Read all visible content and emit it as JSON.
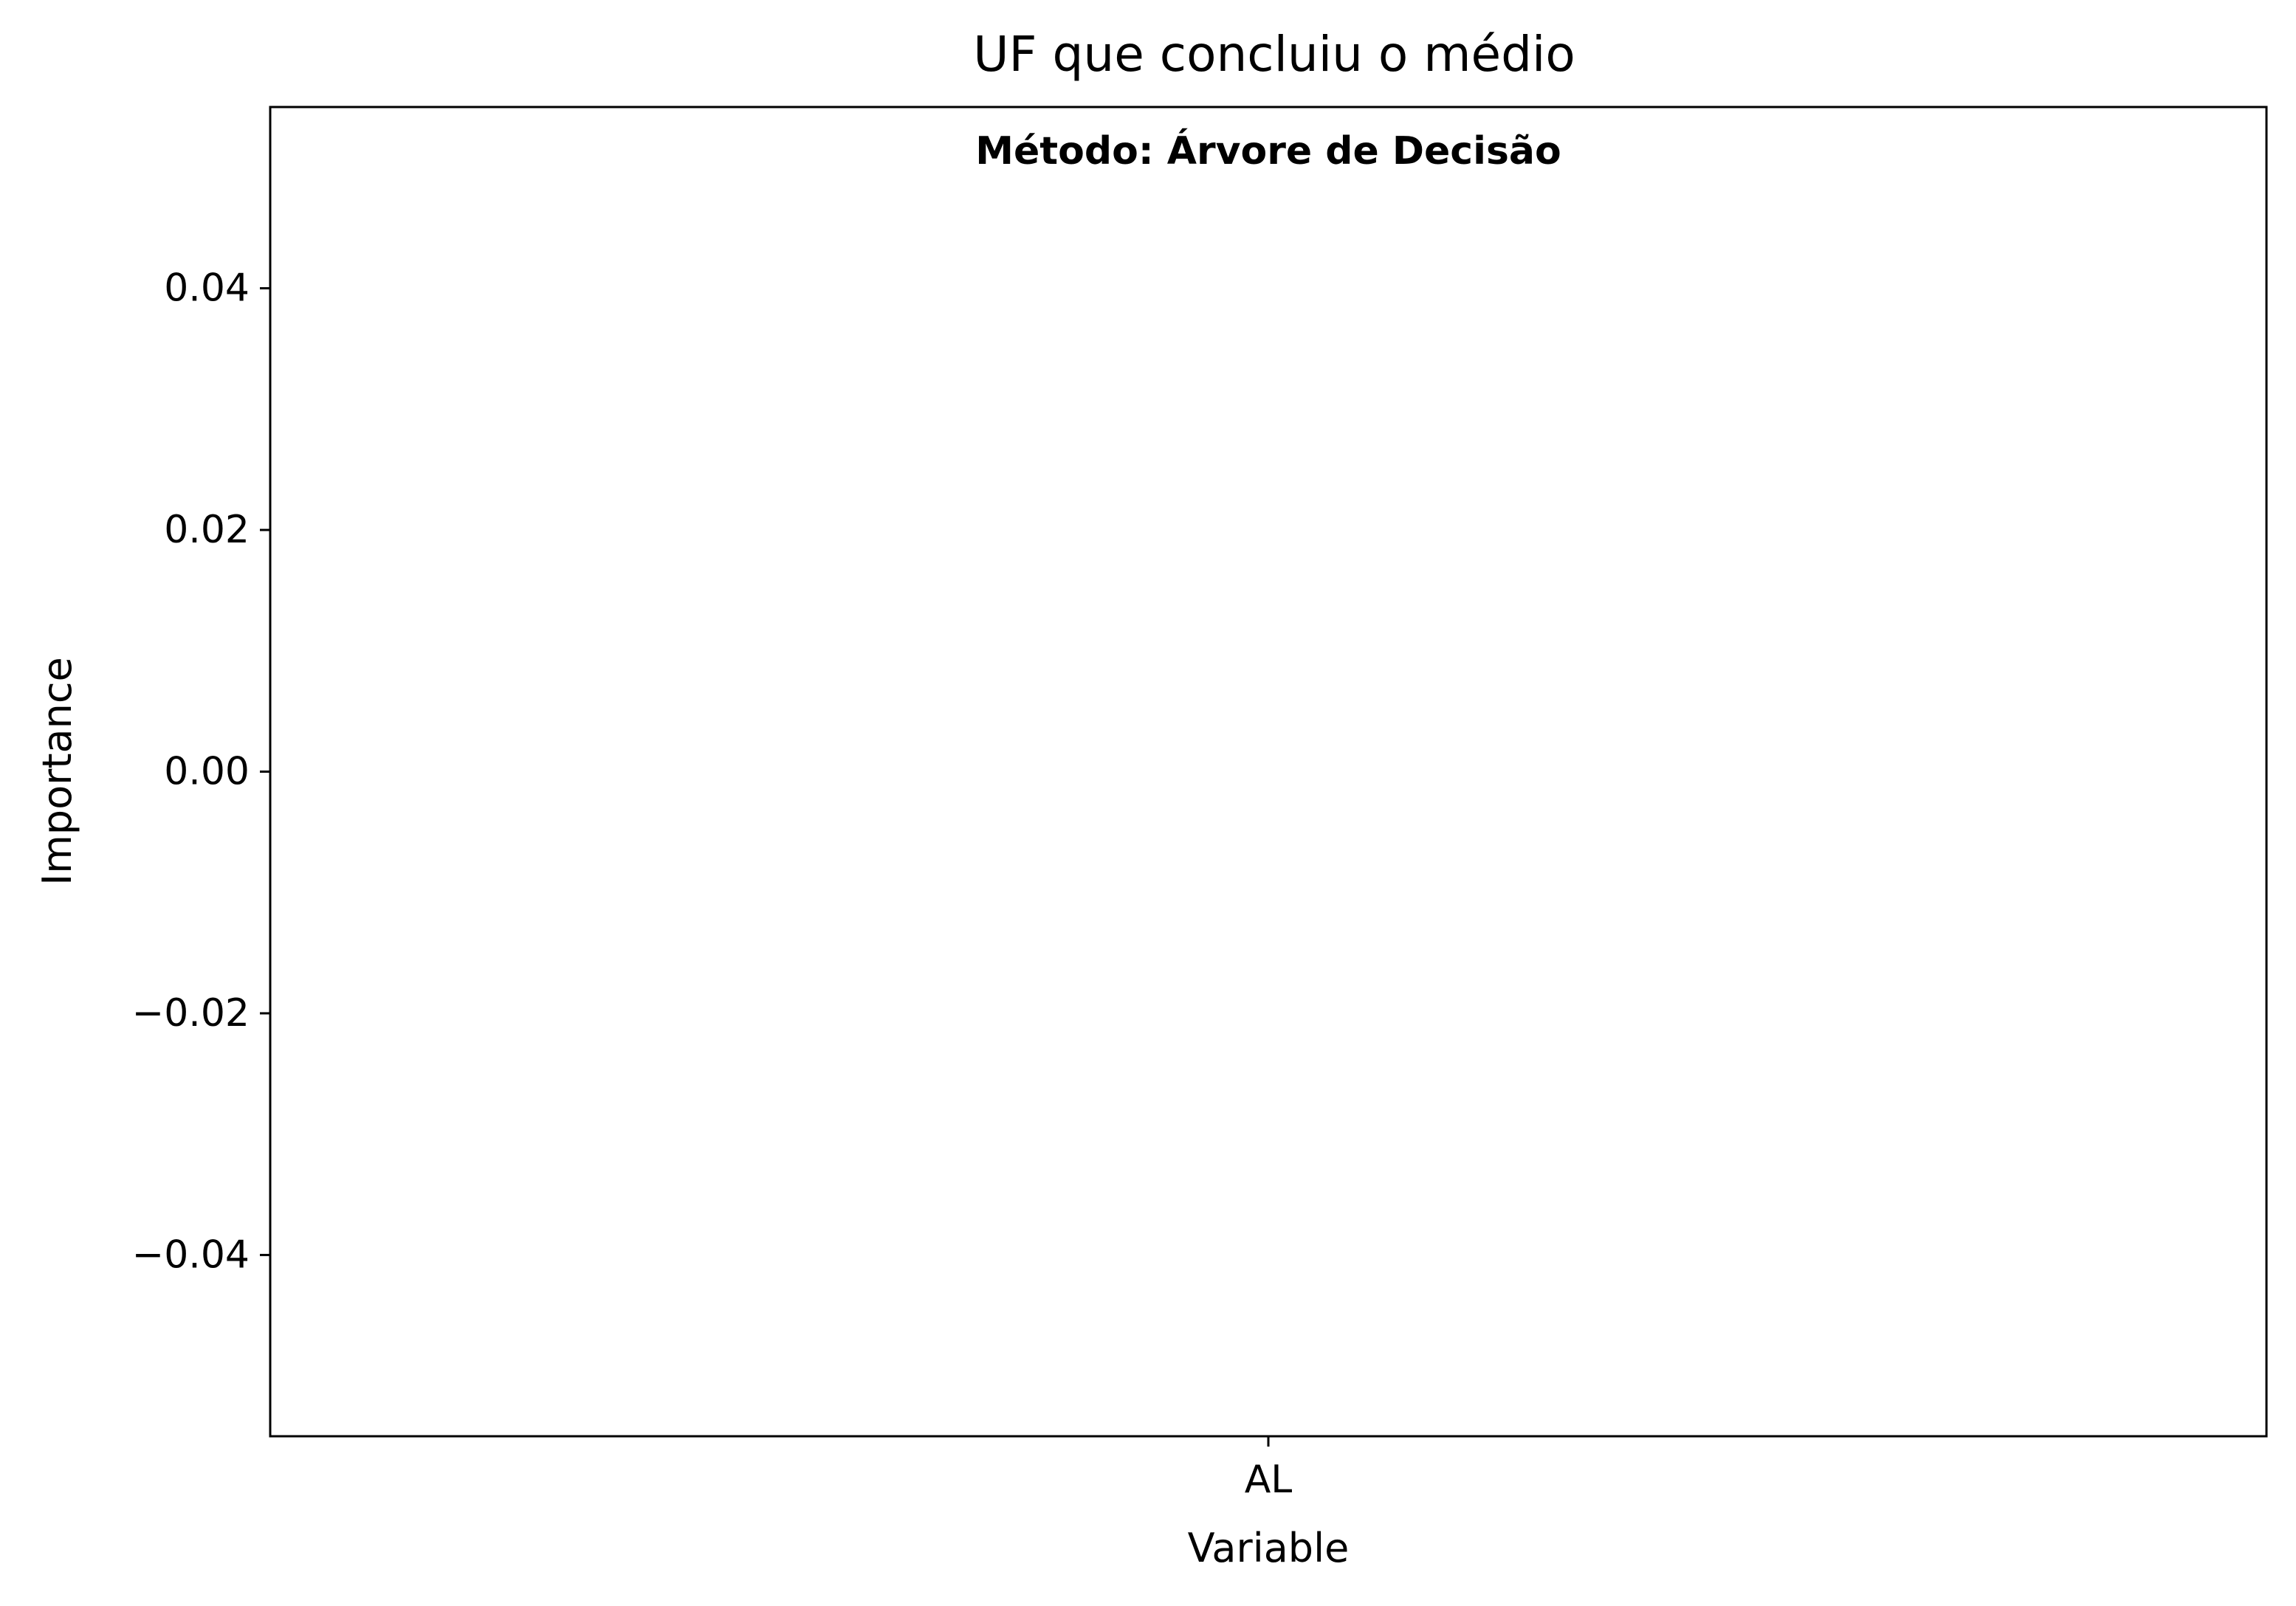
{
  "chart_data": {
    "type": "bar",
    "title": "UF que concluiu o médio",
    "annotation": "Método: Árvore de Decisão",
    "xlabel": "Variable",
    "ylabel": "Importance",
    "categories": [
      "AL"
    ],
    "values": [
      0.0
    ],
    "ylim": [
      -0.055,
      0.055
    ],
    "yticks": [
      0.04,
      0.02,
      0.0,
      -0.02,
      -0.04
    ],
    "ytick_labels": [
      "0.04",
      "0.02",
      "0.00",
      "−0.02",
      "−0.04"
    ],
    "grid": false,
    "legend": "none"
  },
  "colors": {
    "bar": "#1f77b4",
    "axes": "#000000",
    "background": "#ffffff"
  }
}
